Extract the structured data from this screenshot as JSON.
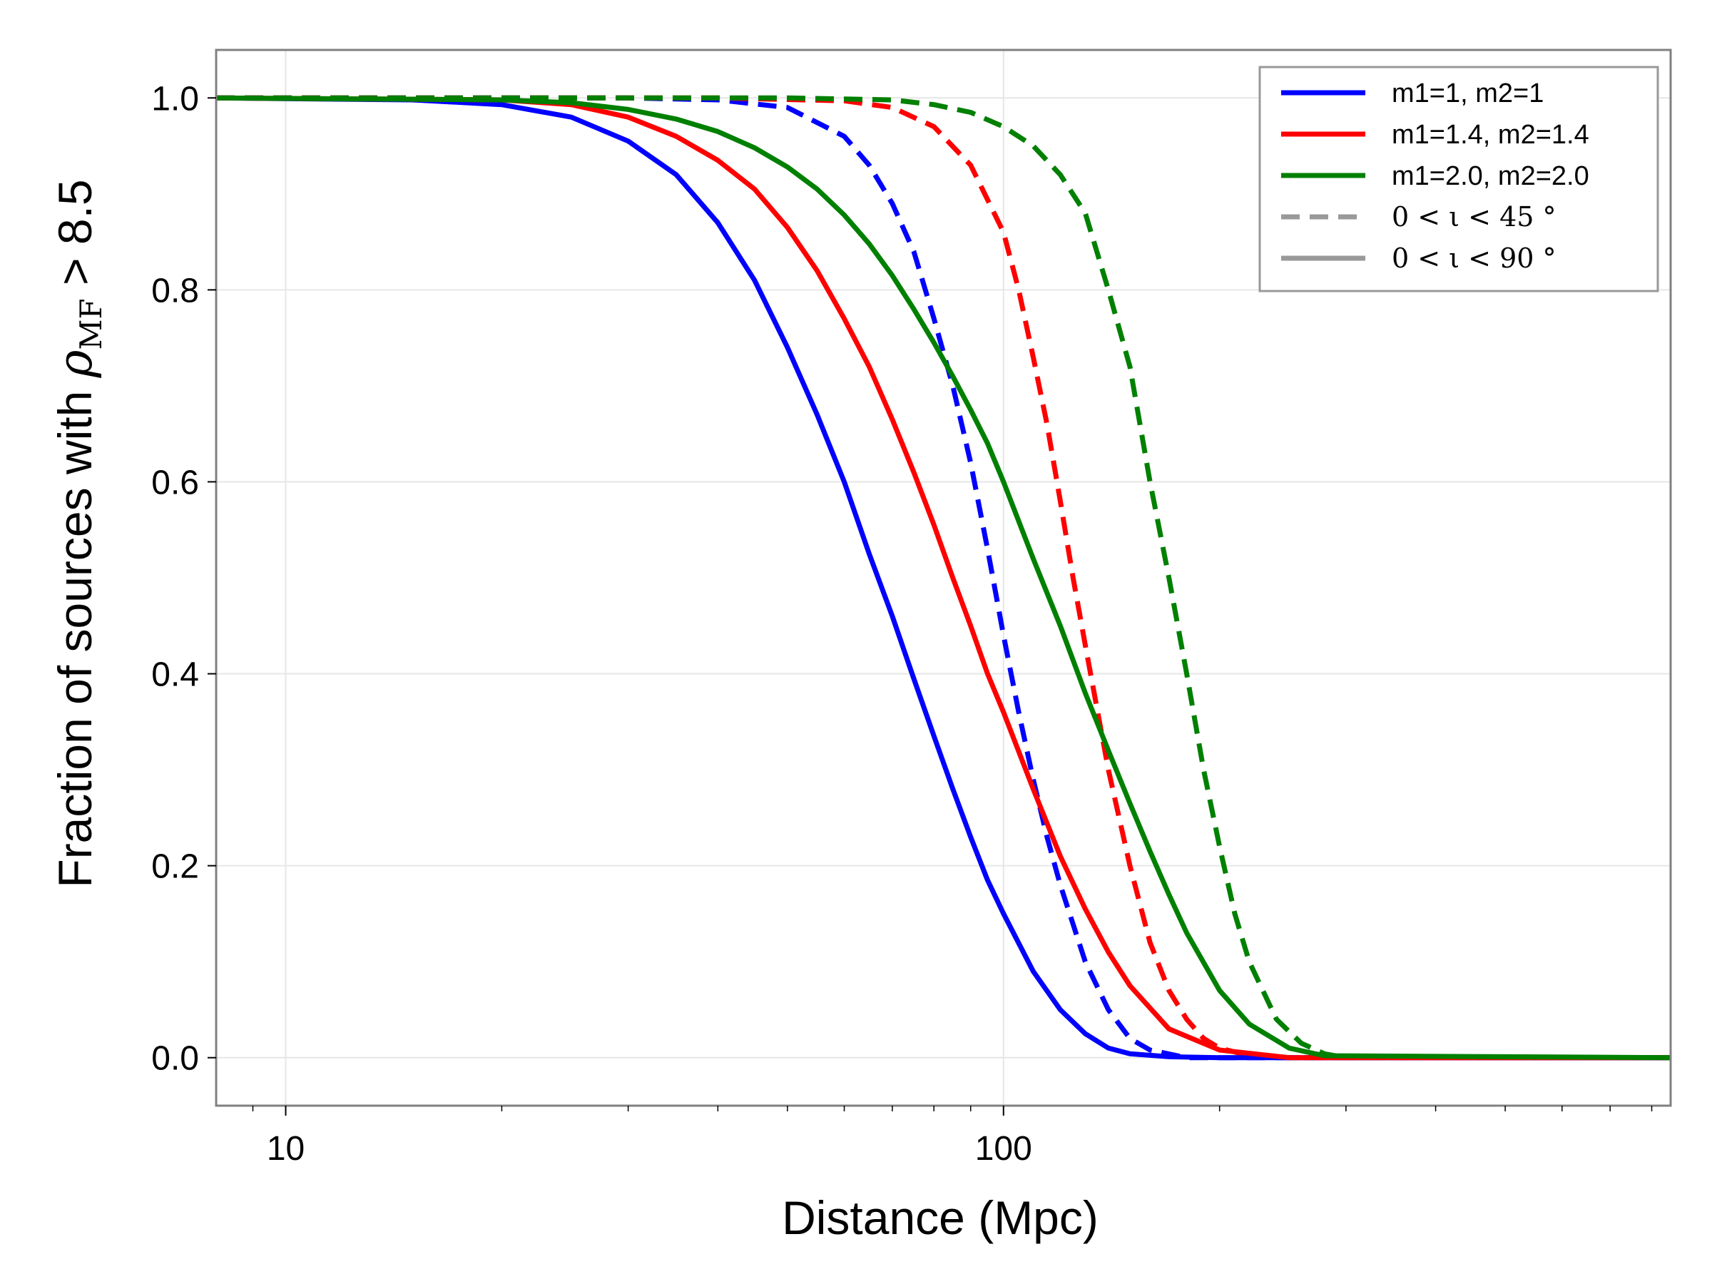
{
  "chart_data": {
    "type": "line",
    "xlabel": "Distance (Mpc)",
    "ylabel_prefix": "Fraction of sources with ",
    "ylabel_rho": "ρ",
    "ylabel_sub": "MF",
    "ylabel_suffix": " > 8.5",
    "xscale": "log",
    "xlim": [
      8,
      850
    ],
    "ylim": [
      -0.05,
      1.05
    ],
    "x_ticks": [
      10,
      100
    ],
    "x_tick_labels": [
      "10",
      "100"
    ],
    "y_ticks": [
      0.0,
      0.2,
      0.4,
      0.6,
      0.8,
      1.0
    ],
    "y_tick_labels": [
      "0.0",
      "0.2",
      "0.4",
      "0.6",
      "0.8",
      "1.0"
    ],
    "grid": true,
    "legend_position": "top-right",
    "legend": [
      {
        "label": "m1=1, m2=1",
        "color": "#0000ff",
        "style": "solid",
        "math": false
      },
      {
        "label": "m1=1.4, m2=1.4",
        "color": "#ff0000",
        "style": "solid",
        "math": false
      },
      {
        "label": "m1=2.0, m2=2.0",
        "color": "#008000",
        "style": "solid",
        "math": false
      },
      {
        "label": "0 < ι < 45 °",
        "color": "#999999",
        "style": "dashed",
        "math": true
      },
      {
        "label": "0 < ι < 90 °",
        "color": "#999999",
        "style": "solid",
        "math": true
      }
    ],
    "series": [
      {
        "color": "#0000ff",
        "style": "solid",
        "x": [
          8,
          15,
          20,
          25,
          30,
          35,
          40,
          45,
          50,
          55,
          60,
          65,
          70,
          75,
          80,
          85,
          90,
          95,
          100,
          110,
          120,
          130,
          140,
          150,
          170,
          200,
          850
        ],
        "y": [
          1.0,
          0.998,
          0.993,
          0.98,
          0.955,
          0.92,
          0.87,
          0.81,
          0.74,
          0.67,
          0.6,
          0.525,
          0.46,
          0.395,
          0.335,
          0.28,
          0.23,
          0.185,
          0.15,
          0.09,
          0.05,
          0.025,
          0.01,
          0.004,
          0.001,
          0.0,
          0.0
        ]
      },
      {
        "color": "#0000ff",
        "style": "dashed",
        "x": [
          8,
          30,
          40,
          50,
          60,
          65,
          70,
          75,
          80,
          85,
          90,
          95,
          100,
          105,
          110,
          115,
          120,
          130,
          140,
          150,
          160,
          180,
          850
        ],
        "y": [
          1.0,
          1.0,
          0.998,
          0.99,
          0.96,
          0.93,
          0.89,
          0.84,
          0.77,
          0.7,
          0.62,
          0.53,
          0.44,
          0.36,
          0.29,
          0.23,
          0.18,
          0.1,
          0.05,
          0.02,
          0.008,
          0.0,
          0.0
        ]
      },
      {
        "color": "#ff0000",
        "style": "solid",
        "x": [
          8,
          20,
          25,
          30,
          35,
          40,
          45,
          50,
          55,
          60,
          65,
          70,
          75,
          80,
          85,
          90,
          95,
          100,
          110,
          120,
          130,
          140,
          150,
          170,
          200,
          250,
          850
        ],
        "y": [
          1.0,
          0.998,
          0.993,
          0.98,
          0.96,
          0.935,
          0.905,
          0.865,
          0.82,
          0.77,
          0.72,
          0.665,
          0.61,
          0.555,
          0.5,
          0.45,
          0.4,
          0.36,
          0.28,
          0.21,
          0.155,
          0.11,
          0.075,
          0.03,
          0.008,
          0.0,
          0.0
        ]
      },
      {
        "color": "#ff0000",
        "style": "dashed",
        "x": [
          8,
          40,
          60,
          70,
          80,
          90,
          100,
          105,
          110,
          115,
          120,
          125,
          130,
          140,
          150,
          160,
          170,
          180,
          190,
          200,
          220,
          250,
          850
        ],
        "y": [
          1.0,
          1.0,
          0.997,
          0.99,
          0.97,
          0.93,
          0.86,
          0.8,
          0.73,
          0.66,
          0.58,
          0.5,
          0.43,
          0.3,
          0.2,
          0.12,
          0.07,
          0.04,
          0.02,
          0.01,
          0.002,
          0.0,
          0.0
        ]
      },
      {
        "color": "#008000",
        "style": "solid",
        "x": [
          8,
          20,
          25,
          30,
          35,
          40,
          45,
          50,
          55,
          60,
          65,
          70,
          75,
          80,
          85,
          90,
          95,
          100,
          110,
          120,
          130,
          140,
          150,
          160,
          170,
          180,
          200,
          220,
          250,
          280,
          850
        ],
        "y": [
          1.0,
          0.998,
          0.995,
          0.988,
          0.978,
          0.965,
          0.948,
          0.928,
          0.905,
          0.878,
          0.848,
          0.815,
          0.78,
          0.745,
          0.71,
          0.675,
          0.64,
          0.6,
          0.52,
          0.45,
          0.38,
          0.32,
          0.265,
          0.215,
          0.17,
          0.13,
          0.07,
          0.035,
          0.01,
          0.002,
          0.0
        ]
      },
      {
        "color": "#008000",
        "style": "dashed",
        "x": [
          8,
          50,
          70,
          80,
          90,
          100,
          110,
          120,
          130,
          140,
          150,
          160,
          170,
          180,
          190,
          200,
          210,
          220,
          240,
          260,
          280,
          300,
          850
        ],
        "y": [
          1.0,
          1.0,
          0.998,
          0.993,
          0.985,
          0.97,
          0.95,
          0.92,
          0.88,
          0.8,
          0.72,
          0.6,
          0.5,
          0.4,
          0.3,
          0.22,
          0.15,
          0.1,
          0.04,
          0.015,
          0.004,
          0.0,
          0.0
        ]
      }
    ]
  }
}
